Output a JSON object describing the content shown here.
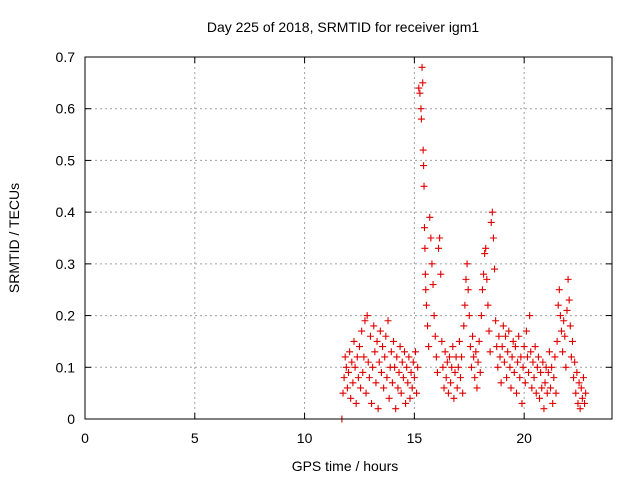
{
  "chart_data": {
    "type": "scatter",
    "title": "Day 225 of 2018, SRMTID for receiver igm1",
    "xlabel": "GPS time / hours",
    "ylabel": "SRMTID / TECUs",
    "xlim": [
      0,
      24
    ],
    "ylim": [
      0,
      0.7
    ],
    "grid": true,
    "marker": "+",
    "color": "#e00000",
    "x_ticks": [
      0,
      5,
      10,
      15,
      20
    ],
    "y_ticks": [
      0,
      0.1,
      0.2,
      0.3,
      0.4,
      0.5,
      0.6,
      0.7
    ],
    "x_tick_labels": [
      "0",
      "5",
      "10",
      "15",
      "20"
    ],
    "y_tick_labels": [
      "0",
      "0.1",
      "0.2",
      "0.3",
      "0.4",
      "0.5",
      "0.6",
      "0.7"
    ],
    "series": [
      {
        "name": "SRMTID",
        "points": [
          [
            11.7,
            0.0
          ],
          [
            11.75,
            0.05
          ],
          [
            11.8,
            0.08
          ],
          [
            11.85,
            0.12
          ],
          [
            11.9,
            0.1
          ],
          [
            11.95,
            0.06
          ],
          [
            12.0,
            0.09
          ],
          [
            12.05,
            0.13
          ],
          [
            12.1,
            0.04
          ],
          [
            12.15,
            0.11
          ],
          [
            12.2,
            0.07
          ],
          [
            12.25,
            0.15
          ],
          [
            12.3,
            0.1
          ],
          [
            12.35,
            0.03
          ],
          [
            12.4,
            0.12
          ],
          [
            12.45,
            0.08
          ],
          [
            12.5,
            0.14
          ],
          [
            12.55,
            0.06
          ],
          [
            12.6,
            0.17
          ],
          [
            12.65,
            0.09
          ],
          [
            12.7,
            0.12
          ],
          [
            12.75,
            0.19
          ],
          [
            12.8,
            0.05
          ],
          [
            12.85,
            0.2
          ],
          [
            12.9,
            0.11
          ],
          [
            12.95,
            0.08
          ],
          [
            13.0,
            0.16
          ],
          [
            13.05,
            0.03
          ],
          [
            13.1,
            0.1
          ],
          [
            13.15,
            0.18
          ],
          [
            13.2,
            0.13
          ],
          [
            13.25,
            0.07
          ],
          [
            13.3,
            0.15
          ],
          [
            13.35,
            0.02
          ],
          [
            13.4,
            0.11
          ],
          [
            13.45,
            0.17
          ],
          [
            13.5,
            0.09
          ],
          [
            13.55,
            0.14
          ],
          [
            13.6,
            0.06
          ],
          [
            13.65,
            0.12
          ],
          [
            13.7,
            0.16
          ],
          [
            13.75,
            0.08
          ],
          [
            13.8,
            0.19
          ],
          [
            13.85,
            0.04
          ],
          [
            13.9,
            0.1
          ],
          [
            13.95,
            0.13
          ],
          [
            14.0,
            0.07
          ],
          [
            14.05,
            0.15
          ],
          [
            14.1,
            0.1
          ],
          [
            14.15,
            0.02
          ],
          [
            14.2,
            0.12
          ],
          [
            14.25,
            0.06
          ],
          [
            14.3,
            0.09
          ],
          [
            14.35,
            0.14
          ],
          [
            14.4,
            0.05
          ],
          [
            14.45,
            0.11
          ],
          [
            14.5,
            0.08
          ],
          [
            14.55,
            0.13
          ],
          [
            14.6,
            0.03
          ],
          [
            14.65,
            0.1
          ],
          [
            14.7,
            0.07
          ],
          [
            14.75,
            0.12
          ],
          [
            14.8,
            0.04
          ],
          [
            14.85,
            0.09
          ],
          [
            14.9,
            0.06
          ],
          [
            14.95,
            0.11
          ],
          [
            15.0,
            0.08
          ],
          [
            15.05,
            0.13
          ],
          [
            15.1,
            0.05
          ],
          [
            15.15,
            0.1
          ],
          [
            15.2,
            0.64
          ],
          [
            15.25,
            0.63
          ],
          [
            15.3,
            0.6
          ],
          [
            15.32,
            0.58
          ],
          [
            15.35,
            0.68
          ],
          [
            15.38,
            0.65
          ],
          [
            15.4,
            0.52
          ],
          [
            15.42,
            0.49
          ],
          [
            15.44,
            0.45
          ],
          [
            15.46,
            0.37
          ],
          [
            15.48,
            0.33
          ],
          [
            15.5,
            0.28
          ],
          [
            15.52,
            0.25
          ],
          [
            15.55,
            0.22
          ],
          [
            15.6,
            0.18
          ],
          [
            15.65,
            0.14
          ],
          [
            15.7,
            0.39
          ],
          [
            15.75,
            0.35
          ],
          [
            15.8,
            0.3
          ],
          [
            15.85,
            0.26
          ],
          [
            15.9,
            0.2
          ],
          [
            15.95,
            0.16
          ],
          [
            16.0,
            0.12
          ],
          [
            16.05,
            0.09
          ],
          [
            16.1,
            0.33
          ],
          [
            16.15,
            0.35
          ],
          [
            16.2,
            0.28
          ],
          [
            16.25,
            0.15
          ],
          [
            16.3,
            0.1
          ],
          [
            16.35,
            0.06
          ],
          [
            16.4,
            0.13
          ],
          [
            16.45,
            0.08
          ],
          [
            16.5,
            0.11
          ],
          [
            16.55,
            0.05
          ],
          [
            16.6,
            0.12
          ],
          [
            16.65,
            0.07
          ],
          [
            16.7,
            0.1
          ],
          [
            16.75,
            0.14
          ],
          [
            16.8,
            0.04
          ],
          [
            16.85,
            0.09
          ],
          [
            16.9,
            0.12
          ],
          [
            16.95,
            0.06
          ],
          [
            17.0,
            0.1
          ],
          [
            17.05,
            0.15
          ],
          [
            17.1,
            0.08
          ],
          [
            17.15,
            0.12
          ],
          [
            17.2,
            0.05
          ],
          [
            17.25,
            0.18
          ],
          [
            17.3,
            0.22
          ],
          [
            17.35,
            0.27
          ],
          [
            17.4,
            0.3
          ],
          [
            17.45,
            0.25
          ],
          [
            17.5,
            0.2
          ],
          [
            17.55,
            0.14
          ],
          [
            17.6,
            0.1
          ],
          [
            17.65,
            0.16
          ],
          [
            17.7,
            0.12
          ],
          [
            17.75,
            0.08
          ],
          [
            17.8,
            0.13
          ],
          [
            17.85,
            0.06
          ],
          [
            17.9,
            0.11
          ],
          [
            17.95,
            0.15
          ],
          [
            18.0,
            0.09
          ],
          [
            18.05,
            0.2
          ],
          [
            18.1,
            0.25
          ],
          [
            18.15,
            0.28
          ],
          [
            18.2,
            0.32
          ],
          [
            18.25,
            0.33
          ],
          [
            18.3,
            0.27
          ],
          [
            18.35,
            0.22
          ],
          [
            18.4,
            0.17
          ],
          [
            18.45,
            0.13
          ],
          [
            18.5,
            0.38
          ],
          [
            18.55,
            0.4
          ],
          [
            18.6,
            0.35
          ],
          [
            18.65,
            0.29
          ],
          [
            18.7,
            0.19
          ],
          [
            18.75,
            0.14
          ],
          [
            18.8,
            0.1
          ],
          [
            18.85,
            0.16
          ],
          [
            18.9,
            0.12
          ],
          [
            18.95,
            0.07
          ],
          [
            19.0,
            0.14
          ],
          [
            19.05,
            0.18
          ],
          [
            19.1,
            0.11
          ],
          [
            19.15,
            0.16
          ],
          [
            19.2,
            0.08
          ],
          [
            19.25,
            0.13
          ],
          [
            19.3,
            0.17
          ],
          [
            19.35,
            0.1
          ],
          [
            19.4,
            0.06
          ],
          [
            19.45,
            0.12
          ],
          [
            19.5,
            0.15
          ],
          [
            19.55,
            0.09
          ],
          [
            19.6,
            0.14
          ],
          [
            19.65,
            0.05
          ],
          [
            19.7,
            0.11
          ],
          [
            19.75,
            0.16
          ],
          [
            19.8,
            0.08
          ],
          [
            19.85,
            0.12
          ],
          [
            19.9,
            0.03
          ],
          [
            19.95,
            0.1
          ],
          [
            20.0,
            0.14
          ],
          [
            20.05,
            0.07
          ],
          [
            20.1,
            0.17
          ],
          [
            20.15,
            0.12
          ],
          [
            20.2,
            0.09
          ],
          [
            20.25,
            0.2
          ],
          [
            20.3,
            0.13
          ],
          [
            20.35,
            0.06
          ],
          [
            20.4,
            0.11
          ],
          [
            20.45,
            0.08
          ],
          [
            20.5,
            0.14
          ],
          [
            20.55,
            0.05
          ],
          [
            20.6,
            0.1
          ],
          [
            20.65,
            0.12
          ],
          [
            20.7,
            0.04
          ],
          [
            20.75,
            0.09
          ],
          [
            20.8,
            0.06
          ],
          [
            20.85,
            0.11
          ],
          [
            20.9,
            0.02
          ],
          [
            20.95,
            0.07
          ],
          [
            21.0,
            0.1
          ],
          [
            21.05,
            0.05
          ],
          [
            21.1,
            0.09
          ],
          [
            21.15,
            0.13
          ],
          [
            21.2,
            0.06
          ],
          [
            21.25,
            0.1
          ],
          [
            21.3,
            0.03
          ],
          [
            21.35,
            0.08
          ],
          [
            21.4,
            0.12
          ],
          [
            21.45,
            0.05
          ],
          [
            21.5,
            0.15
          ],
          [
            21.55,
            0.22
          ],
          [
            21.6,
            0.25
          ],
          [
            21.65,
            0.2
          ],
          [
            21.7,
            0.17
          ],
          [
            21.75,
            0.13
          ],
          [
            21.8,
            0.19
          ],
          [
            21.85,
            0.16
          ],
          [
            21.9,
            0.1
          ],
          [
            21.95,
            0.21
          ],
          [
            22.0,
            0.27
          ],
          [
            22.05,
            0.23
          ],
          [
            22.1,
            0.18
          ],
          [
            22.15,
            0.12
          ],
          [
            22.2,
            0.15
          ],
          [
            22.25,
            0.08
          ],
          [
            22.3,
            0.11
          ],
          [
            22.35,
            0.05
          ],
          [
            22.4,
            0.09
          ],
          [
            22.45,
            0.03
          ],
          [
            22.5,
            0.07
          ],
          [
            22.55,
            0.02
          ],
          [
            22.6,
            0.06
          ],
          [
            22.65,
            0.04
          ],
          [
            22.7,
            0.08
          ],
          [
            22.75,
            0.03
          ],
          [
            22.8,
            0.05
          ]
        ]
      }
    ]
  }
}
